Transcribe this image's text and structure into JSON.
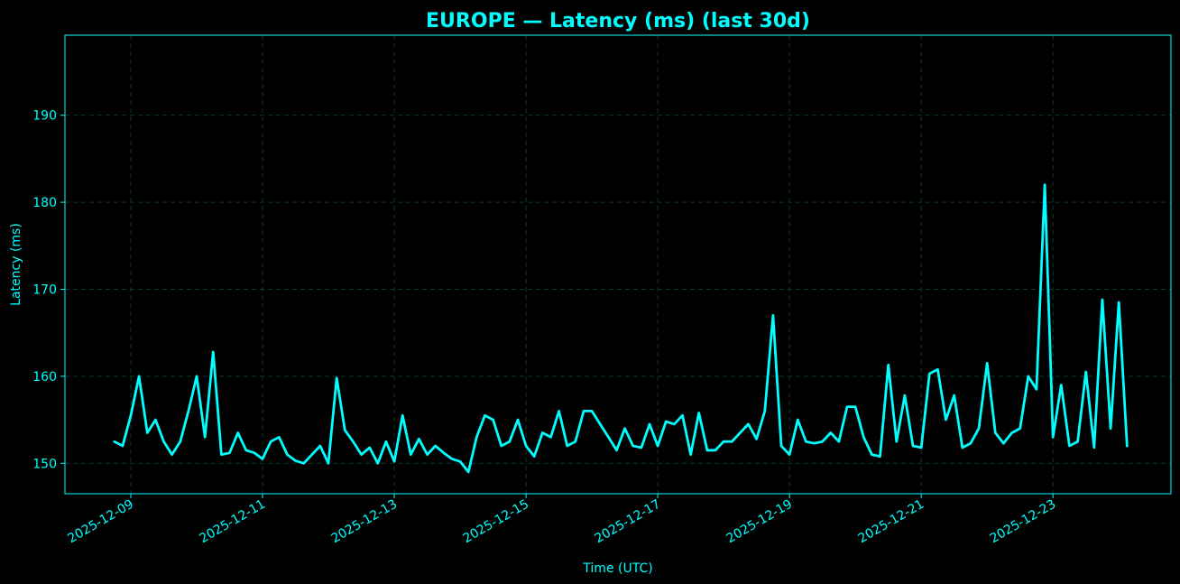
{
  "chart_data": {
    "type": "line",
    "title": "EUROPE — Latency (ms) (last 30d)",
    "xlabel": "Time (UTC)",
    "ylabel": "Latency (ms)",
    "y_ticks": [
      150,
      160,
      170,
      180,
      190
    ],
    "x_ticks": [
      "2025-12-09",
      "2025-12-11",
      "2025-12-13",
      "2025-12-15",
      "2025-12-17",
      "2025-12-19",
      "2025-12-21",
      "2025-12-23"
    ],
    "xlim": [
      "2025-12-08T00:00",
      "2025-12-24T19:00"
    ],
    "ylim": [
      146.5,
      199.2
    ],
    "grid": true,
    "colors": {
      "background": "#000000",
      "accent": "#00ffff",
      "grid": "#0b3a25"
    },
    "series": [
      {
        "color": "#00ffff",
        "points": [
          [
            "2025-12-08T18:00",
            152.5
          ],
          [
            "2025-12-08T21:00",
            152.0
          ],
          [
            "2025-12-09T00:00",
            155.5
          ],
          [
            "2025-12-09T03:00",
            160.0
          ],
          [
            "2025-12-09T06:00",
            153.5
          ],
          [
            "2025-12-09T09:00",
            155.0
          ],
          [
            "2025-12-09T12:00",
            152.5
          ],
          [
            "2025-12-09T15:00",
            151.0
          ],
          [
            "2025-12-09T18:00",
            152.5
          ],
          [
            "2025-12-09T21:00",
            156.0
          ],
          [
            "2025-12-10T00:00",
            160.0
          ],
          [
            "2025-12-10T03:00",
            153.0
          ],
          [
            "2025-12-10T06:00",
            162.8
          ],
          [
            "2025-12-10T09:00",
            151.0
          ],
          [
            "2025-12-10T12:00",
            151.2
          ],
          [
            "2025-12-10T15:00",
            153.5
          ],
          [
            "2025-12-10T18:00",
            151.5
          ],
          [
            "2025-12-10T21:00",
            151.2
          ],
          [
            "2025-12-11T00:00",
            150.5
          ],
          [
            "2025-12-11T03:00",
            152.5
          ],
          [
            "2025-12-11T06:00",
            153.0
          ],
          [
            "2025-12-11T09:00",
            151.0
          ],
          [
            "2025-12-11T12:00",
            150.3
          ],
          [
            "2025-12-11T15:00",
            150.0
          ],
          [
            "2025-12-11T18:00",
            151.0
          ],
          [
            "2025-12-11T21:00",
            152.0
          ],
          [
            "2025-12-12T00:00",
            150.0
          ],
          [
            "2025-12-12T03:00",
            159.8
          ],
          [
            "2025-12-12T06:00",
            153.8
          ],
          [
            "2025-12-12T09:00",
            152.5
          ],
          [
            "2025-12-12T12:00",
            151.0
          ],
          [
            "2025-12-12T15:00",
            151.8
          ],
          [
            "2025-12-12T18:00",
            150.0
          ],
          [
            "2025-12-12T21:00",
            152.5
          ],
          [
            "2025-12-13T00:00",
            150.2
          ],
          [
            "2025-12-13T03:00",
            155.5
          ],
          [
            "2025-12-13T06:00",
            151.0
          ],
          [
            "2025-12-13T09:00",
            152.8
          ],
          [
            "2025-12-13T12:00",
            151.0
          ],
          [
            "2025-12-13T15:00",
            152.0
          ],
          [
            "2025-12-13T18:00",
            151.2
          ],
          [
            "2025-12-13T21:00",
            150.5
          ],
          [
            "2025-12-14T00:00",
            150.2
          ],
          [
            "2025-12-14T03:00",
            149.0
          ],
          [
            "2025-12-14T06:00",
            153.0
          ],
          [
            "2025-12-14T09:00",
            155.5
          ],
          [
            "2025-12-14T12:00",
            155.0
          ],
          [
            "2025-12-14T15:00",
            152.0
          ],
          [
            "2025-12-14T18:00",
            152.5
          ],
          [
            "2025-12-14T21:00",
            155.0
          ],
          [
            "2025-12-15T00:00",
            152.0
          ],
          [
            "2025-12-15T03:00",
            150.8
          ],
          [
            "2025-12-15T06:00",
            153.5
          ],
          [
            "2025-12-15T09:00",
            153.0
          ],
          [
            "2025-12-15T12:00",
            156.0
          ],
          [
            "2025-12-15T15:00",
            152.0
          ],
          [
            "2025-12-15T18:00",
            152.5
          ],
          [
            "2025-12-15T21:00",
            156.0
          ],
          [
            "2025-12-16T00:00",
            156.0
          ],
          [
            "2025-12-16T03:00",
            154.5
          ],
          [
            "2025-12-16T06:00",
            153.0
          ],
          [
            "2025-12-16T09:00",
            151.5
          ],
          [
            "2025-12-16T12:00",
            154.0
          ],
          [
            "2025-12-16T15:00",
            152.0
          ],
          [
            "2025-12-16T18:00",
            151.8
          ],
          [
            "2025-12-16T21:00",
            154.5
          ],
          [
            "2025-12-17T00:00",
            152.0
          ],
          [
            "2025-12-17T03:00",
            154.8
          ],
          [
            "2025-12-17T06:00",
            154.5
          ],
          [
            "2025-12-17T09:00",
            155.5
          ],
          [
            "2025-12-17T12:00",
            151.0
          ],
          [
            "2025-12-17T15:00",
            155.8
          ],
          [
            "2025-12-17T18:00",
            151.5
          ],
          [
            "2025-12-17T21:00",
            151.5
          ],
          [
            "2025-12-18T00:00",
            152.5
          ],
          [
            "2025-12-18T03:00",
            152.5
          ],
          [
            "2025-12-18T06:00",
            153.5
          ],
          [
            "2025-12-18T09:00",
            154.5
          ],
          [
            "2025-12-18T12:00",
            152.8
          ],
          [
            "2025-12-18T15:00",
            156.0
          ],
          [
            "2025-12-18T18:00",
            167.0
          ],
          [
            "2025-12-18T21:00",
            152.0
          ],
          [
            "2025-12-19T00:00",
            151.0
          ],
          [
            "2025-12-19T03:00",
            155.0
          ],
          [
            "2025-12-19T06:00",
            152.5
          ],
          [
            "2025-12-19T09:00",
            152.3
          ],
          [
            "2025-12-19T12:00",
            152.5
          ],
          [
            "2025-12-19T15:00",
            153.5
          ],
          [
            "2025-12-19T18:00",
            152.5
          ],
          [
            "2025-12-19T21:00",
            156.5
          ],
          [
            "2025-12-20T00:00",
            156.5
          ],
          [
            "2025-12-20T03:00",
            153.0
          ],
          [
            "2025-12-20T06:00",
            151.0
          ],
          [
            "2025-12-20T09:00",
            150.8
          ],
          [
            "2025-12-20T12:00",
            161.3
          ],
          [
            "2025-12-20T15:00",
            152.5
          ],
          [
            "2025-12-20T18:00",
            157.8
          ],
          [
            "2025-12-20T21:00",
            152.0
          ],
          [
            "2025-12-21T00:00",
            151.8
          ],
          [
            "2025-12-21T03:00",
            160.3
          ],
          [
            "2025-12-21T06:00",
            160.8
          ],
          [
            "2025-12-21T09:00",
            155.0
          ],
          [
            "2025-12-21T12:00",
            157.8
          ],
          [
            "2025-12-21T15:00",
            151.8
          ],
          [
            "2025-12-21T18:00",
            152.3
          ],
          [
            "2025-12-21T21:00",
            154.0
          ],
          [
            "2025-12-22T00:00",
            161.5
          ],
          [
            "2025-12-22T03:00",
            153.5
          ],
          [
            "2025-12-22T06:00",
            152.3
          ],
          [
            "2025-12-22T09:00",
            153.5
          ],
          [
            "2025-12-22T12:00",
            154.0
          ],
          [
            "2025-12-22T15:00",
            160.0
          ],
          [
            "2025-12-22T18:00",
            158.5
          ],
          [
            "2025-12-22T21:00",
            182.0
          ],
          [
            "2025-12-23T00:00",
            153.0
          ],
          [
            "2025-12-23T03:00",
            159.0
          ],
          [
            "2025-12-23T06:00",
            152.0
          ],
          [
            "2025-12-23T09:00",
            152.5
          ],
          [
            "2025-12-23T12:00",
            160.5
          ],
          [
            "2025-12-23T15:00",
            151.8
          ],
          [
            "2025-12-23T18:00",
            168.8
          ],
          [
            "2025-12-23T21:00",
            154.0
          ],
          [
            "2025-12-24T00:00",
            168.5
          ],
          [
            "2025-12-24T03:00",
            152.0
          ]
        ]
      }
    ]
  }
}
